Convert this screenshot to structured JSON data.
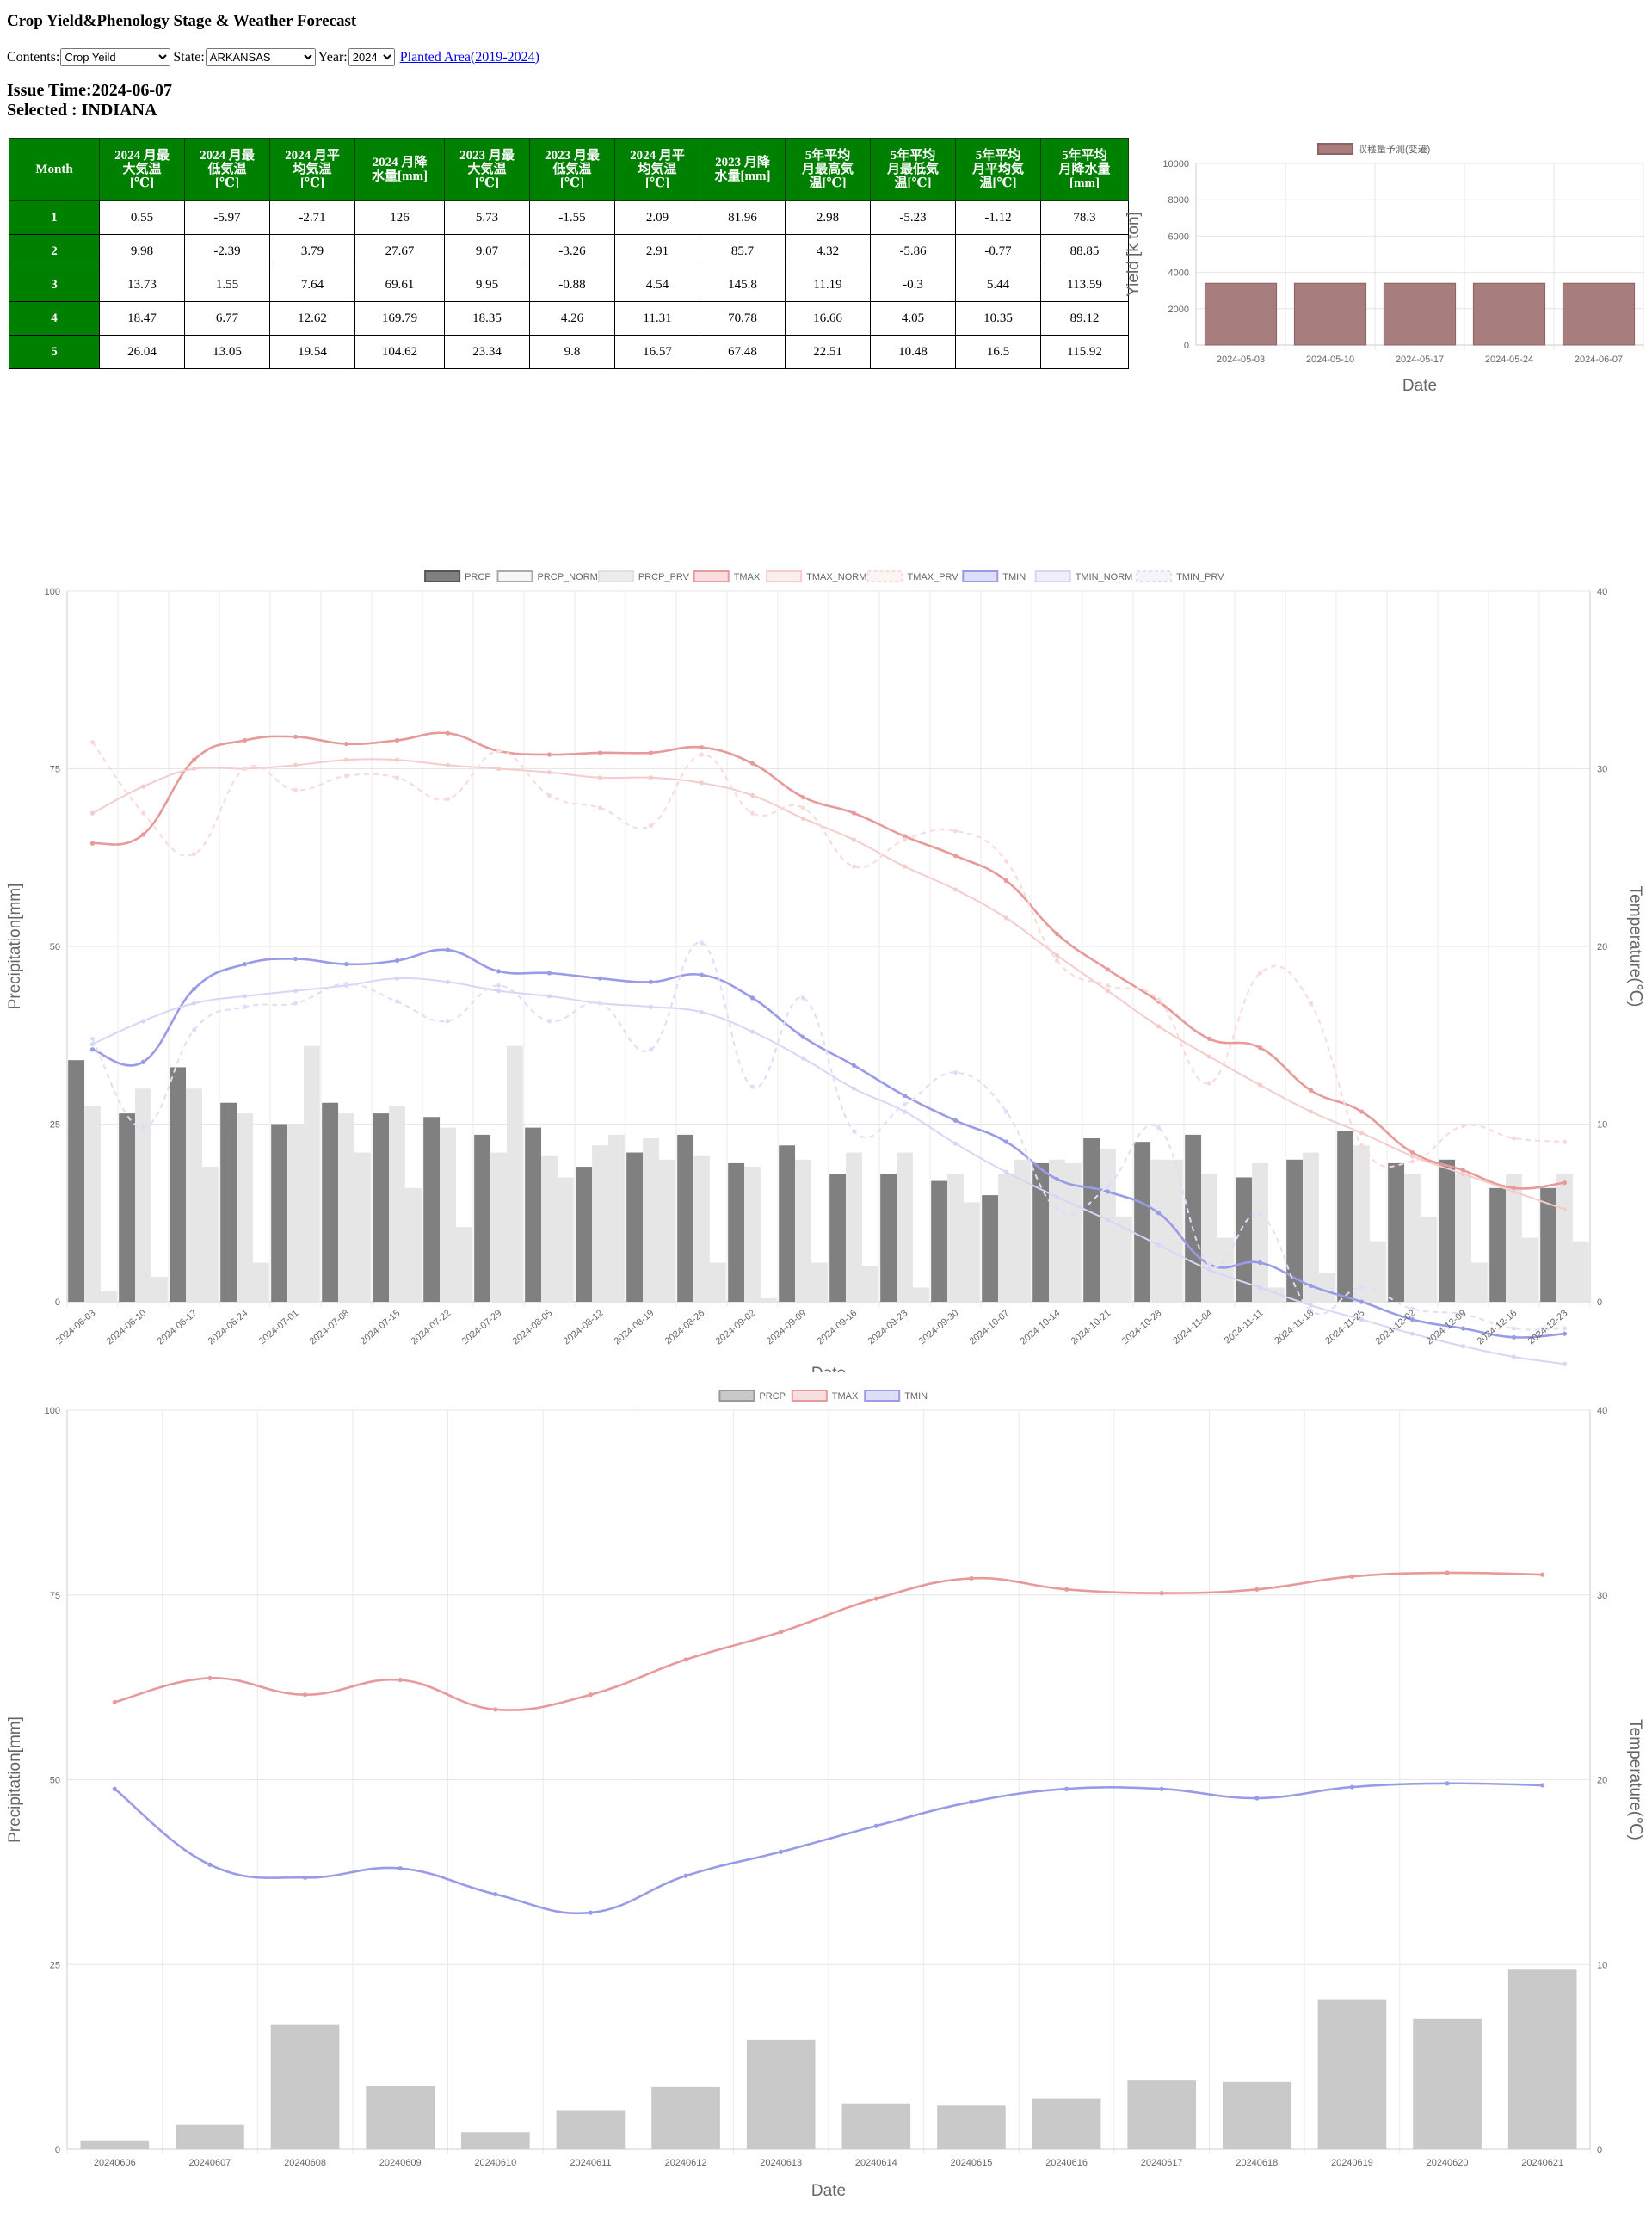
{
  "page": {
    "title": "Crop Yield&Phenology Stage & Weather Forecast",
    "contents_label": "Contents:",
    "contents_value": "Crop Yeild",
    "state_label": "State:",
    "state_value": "ARKANSAS",
    "year_label": "Year:",
    "year_value": "2024",
    "planted_link": "Planted Area(2019-2024)",
    "issue_time": "Issue Time:2024-06-07",
    "selected": "Selected : INDIANA"
  },
  "table": {
    "headers": [
      [
        "Month"
      ],
      [
        "2024 月最",
        "大気温",
        "[℃]"
      ],
      [
        "2024 月最",
        "低気温",
        "[℃]"
      ],
      [
        "2024 月平",
        "均気温",
        "[℃]"
      ],
      [
        "2024 月降",
        "水量[mm]"
      ],
      [
        "2023 月最",
        "大気温",
        "[℃]"
      ],
      [
        "2023 月最",
        "低気温",
        "[℃]"
      ],
      [
        "2024 月平",
        "均気温",
        "[℃]"
      ],
      [
        "2023 月降",
        "水量[mm]"
      ],
      [
        "5年平均",
        "月最高気",
        "温[℃]"
      ],
      [
        "5年平均",
        "月最低気",
        "温[℃]"
      ],
      [
        "5年平均",
        "月平均気",
        "温[℃]"
      ],
      [
        "5年平均",
        "月降水量",
        "[mm]"
      ]
    ],
    "rows": [
      [
        "1",
        "0.55",
        "-5.97",
        "-2.71",
        "126",
        "5.73",
        "-1.55",
        "2.09",
        "81.96",
        "2.98",
        "-5.23",
        "-1.12",
        "78.3"
      ],
      [
        "2",
        "9.98",
        "-2.39",
        "3.79",
        "27.67",
        "9.07",
        "-3.26",
        "2.91",
        "85.7",
        "4.32",
        "-5.86",
        "-0.77",
        "88.85"
      ],
      [
        "3",
        "13.73",
        "1.55",
        "7.64",
        "69.61",
        "9.95",
        "-0.88",
        "4.54",
        "145.8",
        "11.19",
        "-0.3",
        "5.44",
        "113.59"
      ],
      [
        "4",
        "18.47",
        "6.77",
        "12.62",
        "169.79",
        "18.35",
        "4.26",
        "11.31",
        "70.78",
        "16.66",
        "4.05",
        "10.35",
        "89.12"
      ],
      [
        "5",
        "26.04",
        "13.05",
        "19.54",
        "104.62",
        "23.34",
        "9.8",
        "16.57",
        "67.48",
        "22.51",
        "10.48",
        "16.5",
        "115.92"
      ]
    ]
  },
  "chart_data": [
    {
      "type": "bar",
      "legend": [
        "収穫量予測(変遷)"
      ],
      "categories": [
        "2024-05-03",
        "2024-05-10",
        "2024-05-17",
        "2024-05-24",
        "2024-06-07"
      ],
      "series": [
        {
          "name": "収穫量予測(変遷)",
          "values": [
            3400,
            3400,
            3400,
            3400,
            3400
          ],
          "color": "#a87d7d"
        }
      ],
      "xlabel": "Date",
      "ylabel": "Yield [k ton]",
      "ylim": [
        0,
        10000
      ],
      "yticks": [
        0,
        2000,
        4000,
        6000,
        8000,
        10000
      ],
      "grid": true,
      "legend_position": "top"
    },
    {
      "type": "bar+line",
      "categories": [
        "2024-06-03",
        "2024-06-10",
        "2024-06-17",
        "2024-06-24",
        "2024-07-01",
        "2024-07-08",
        "2024-07-15",
        "2024-07-22",
        "2024-07-29",
        "2024-08-05",
        "2024-08-12",
        "2024-08-19",
        "2024-08-26",
        "2024-09-02",
        "2024-09-09",
        "2024-09-16",
        "2024-09-23",
        "2024-09-30",
        "2024-10-07",
        "2024-10-14",
        "2024-10-21",
        "2024-10-28",
        "2024-11-04",
        "2024-11-11",
        "2024-11-18",
        "2024-11-25",
        "2024-12-02",
        "2024-12-09",
        "2024-12-16",
        "2024-12-23"
      ],
      "legend": [
        "PRCP",
        "PRCP_NORM",
        "PRCP_PRV",
        "TMAX",
        "TMAX_NORM",
        "TMAX_PRV",
        "TMIN",
        "TMIN_NORM",
        "TMIN_PRV"
      ],
      "bars": [
        {
          "name": "PRCP",
          "axis": "left",
          "values": [
            34,
            26.5,
            33,
            28,
            25,
            28,
            26.5,
            26,
            23.5,
            24.5,
            19,
            21,
            23.5,
            19.5,
            22,
            18,
            18,
            17,
            15,
            19.5,
            23,
            22.5,
            23.5,
            17.5,
            20,
            24,
            19.5,
            20,
            16,
            16
          ]
        },
        {
          "name": "PRCP_NORM",
          "axis": "left",
          "values": [
            27.5,
            30,
            30,
            26.5,
            25,
            26.5,
            27.5,
            24.5,
            21,
            20.5,
            22,
            23,
            20.5,
            19,
            20,
            21,
            21,
            18,
            18,
            20,
            21.5,
            20,
            18,
            19.5,
            21,
            22,
            18,
            18,
            18,
            18
          ]
        },
        {
          "name": "PRCP_PRV",
          "axis": "left",
          "values": [
            1.5,
            3.5,
            19,
            5.5,
            36,
            21,
            16,
            10.5,
            36,
            17.5,
            23.5,
            20,
            5.5,
            0.5,
            5.5,
            5,
            2,
            14,
            20,
            19.5,
            12,
            20,
            9,
            2,
            4,
            8.5,
            12,
            5.5,
            9,
            8.5
          ]
        }
      ],
      "lines": [
        {
          "name": "TMAX",
          "axis": "right",
          "values": [
            25.8,
            26.3,
            30.5,
            31.6,
            31.8,
            31.4,
            31.6,
            32,
            31,
            30.8,
            30.9,
            30.9,
            31.2,
            30.3,
            28.4,
            27.5,
            26.2,
            25.1,
            23.7,
            20.7,
            18.7,
            16.9,
            14.8,
            14.3,
            11.9,
            10.7,
            8.4,
            7.4,
            6.4,
            6.7
          ]
        },
        {
          "name": "TMAX_NORM",
          "axis": "right",
          "values": [
            27.5,
            29,
            30,
            30,
            30.2,
            30.5,
            30.5,
            30.2,
            30,
            29.8,
            29.5,
            29.5,
            29.2,
            28.5,
            27.2,
            26,
            24.5,
            23.2,
            21.6,
            19.5,
            17.5,
            15.5,
            13.8,
            12.2,
            10.7,
            9.5,
            8.2,
            7.2,
            6.2,
            5.2
          ]
        },
        {
          "name": "TMAX_PRV",
          "axis": "right",
          "values": [
            31.5,
            27.5,
            25.2,
            30,
            28.8,
            29.6,
            29.5,
            28.3,
            31,
            28.5,
            27.8,
            26.8,
            30.8,
            27.5,
            27.8,
            24.5,
            26,
            26.5,
            24.8,
            19.2,
            17.8,
            17,
            12.3,
            18.5,
            16.8,
            8.8,
            7.9,
            9.9,
            9.2,
            9
          ]
        },
        {
          "name": "TMIN",
          "axis": "right",
          "values": [
            14.2,
            13.5,
            17.6,
            19,
            19.3,
            19,
            19.2,
            19.8,
            18.6,
            18.5,
            18.2,
            18,
            18.4,
            17.1,
            14.9,
            13.3,
            11.6,
            10.2,
            9,
            6.9,
            6.2,
            5,
            2.1,
            2.2,
            0.9,
            0,
            -1,
            -1.5,
            -2,
            -1.8
          ]
        },
        {
          "name": "TMIN_NORM",
          "axis": "right",
          "values": [
            14.5,
            15.8,
            16.8,
            17.2,
            17.5,
            17.8,
            18.2,
            18,
            17.5,
            17.2,
            16.8,
            16.6,
            16.3,
            15.2,
            13.7,
            12,
            10.7,
            8.9,
            7.3,
            5.9,
            4.6,
            3.2,
            1.8,
            0.8,
            -0.2,
            -1,
            -1.8,
            -2.5,
            -3.1,
            -3.5
          ]
        },
        {
          "name": "TMIN_PRV",
          "axis": "right",
          "values": [
            14.8,
            9.8,
            15.3,
            16.6,
            16.8,
            17.9,
            16.9,
            15.8,
            17.8,
            15.8,
            16.8,
            14.2,
            20.2,
            12.1,
            17.1,
            9.6,
            11.1,
            12.9,
            10.7,
            5.2,
            6.5,
            9.8,
            2.1,
            4.9,
            -0.5,
            0.8,
            -0.4,
            -0.7,
            -1.5,
            -1.5
          ]
        }
      ],
      "xlabel": "Date",
      "ylabel_left": "Precipitation[mm]",
      "ylabel_right": "Temperature(℃)",
      "ylim_left": [
        0,
        100
      ],
      "ylim_right": [
        0,
        40
      ],
      "yticks_left": [
        0,
        25,
        50,
        75,
        100
      ],
      "yticks_right": [
        0,
        10,
        20,
        30,
        40
      ],
      "grid": true,
      "legend_position": "top"
    },
    {
      "type": "bar+line",
      "categories": [
        "20240606",
        "20240607",
        "20240608",
        "20240609",
        "20240610",
        "20240611",
        "20240612",
        "20240613",
        "20240614",
        "20240615",
        "20240616",
        "20240617",
        "20240618",
        "20240619",
        "20240620",
        "20240621"
      ],
      "legend": [
        "PRCP",
        "TMAX",
        "TMIN"
      ],
      "bars": [
        {
          "name": "PRCP",
          "axis": "left",
          "values": [
            1.2,
            3.3,
            16.8,
            8.6,
            2.3,
            5.3,
            8.4,
            14.8,
            6.2,
            5.9,
            6.8,
            9.3,
            9.1,
            20.3,
            17.6,
            24.3
          ]
        }
      ],
      "lines": [
        {
          "name": "TMAX",
          "axis": "right",
          "values": [
            24.2,
            25.5,
            24.6,
            25.4,
            23.8,
            24.6,
            26.5,
            28,
            29.8,
            30.9,
            30.3,
            30.1,
            30.3,
            31,
            31.2,
            31.1
          ]
        },
        {
          "name": "TMIN",
          "axis": "right",
          "values": [
            19.5,
            15.4,
            14.7,
            15.2,
            13.8,
            12.8,
            14.8,
            16.1,
            17.5,
            18.8,
            19.5,
            19.5,
            19,
            19.6,
            19.8,
            19.7
          ]
        }
      ],
      "xlabel": "Date",
      "ylabel_left": "Precipitation[mm]",
      "ylabel_right": "Temperature(℃)",
      "ylim_left": [
        0,
        100
      ],
      "ylim_right": [
        0,
        40
      ],
      "yticks_left": [
        0,
        25,
        50,
        75,
        100
      ],
      "yticks_right": [
        0,
        10,
        20,
        30,
        40
      ],
      "grid": true,
      "legend_position": "top"
    }
  ],
  "colors": {
    "table_header": "#008000",
    "yield_bar": "#a87d7d",
    "PRCP": "#808080",
    "PRCP_NORM": "#e6e6e6",
    "PRCP_PRV": "#e6e6e6",
    "PRCP_daily": "#c9c9c9",
    "TMAX": "#e8999a",
    "TMAX_NORM": "#f4cccc",
    "TMAX_PRV": "#f8dada",
    "TMIN": "#9a9be8",
    "TMIN_NORM": "#d6d6f6",
    "TMIN_PRV": "#dedef8"
  }
}
